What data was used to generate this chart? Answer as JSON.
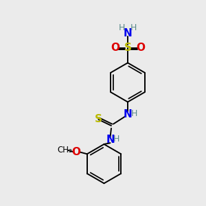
{
  "bg_color": "#ebebeb",
  "atom_colors": {
    "C": "#000000",
    "H": "#5a8a8a",
    "N": "#0000ee",
    "O": "#dd0000",
    "S": "#bbbb00"
  },
  "bond_color": "#000000",
  "lw": 1.4,
  "ring_r": 0.95
}
